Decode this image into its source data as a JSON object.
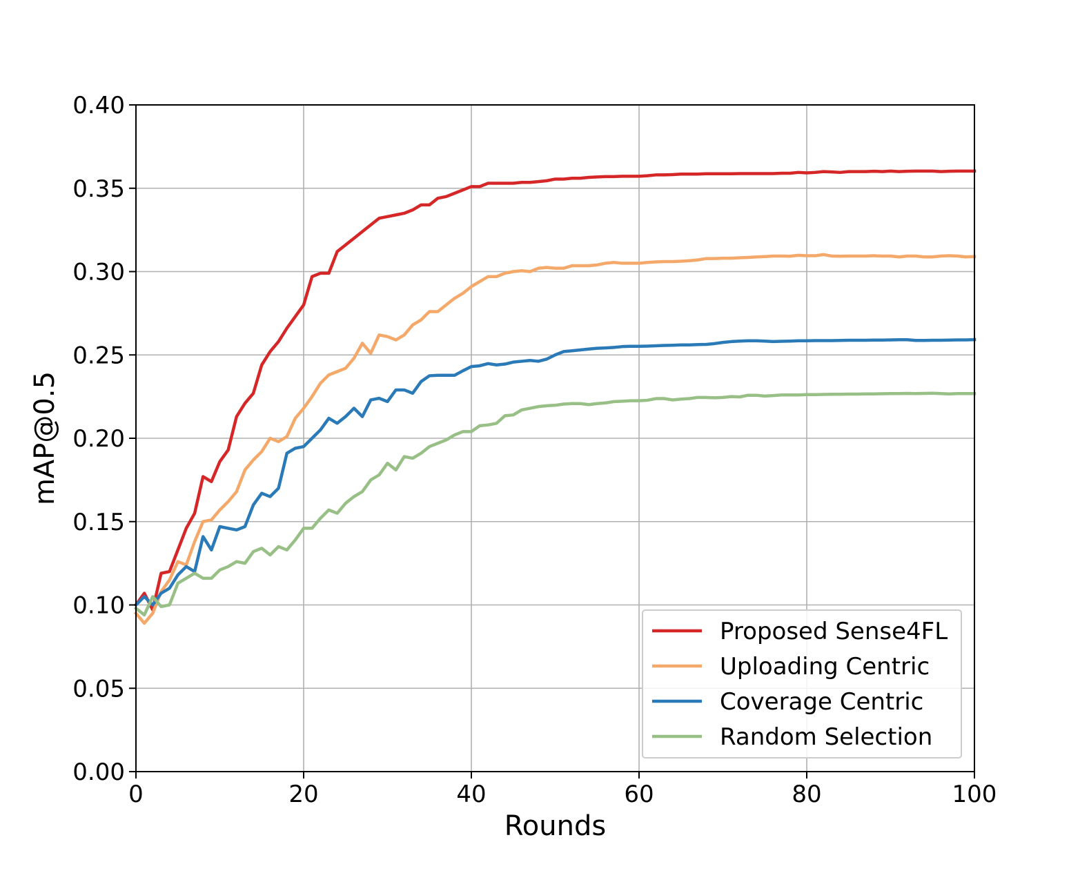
{
  "chart_data": {
    "type": "line",
    "xlabel": "Rounds",
    "ylabel": "mAP@0.5",
    "xlim": [
      0,
      100
    ],
    "ylim": [
      0,
      0.4
    ],
    "xticks": [
      "0",
      "20",
      "40",
      "60",
      "80",
      "100"
    ],
    "yticks": [
      "0.00",
      "0.05",
      "0.10",
      "0.15",
      "0.20",
      "0.25",
      "0.30",
      "0.35",
      "0.40"
    ],
    "grid": true,
    "legend_position": "lower-right",
    "x": [
      0,
      1,
      2,
      3,
      4,
      5,
      6,
      7,
      8,
      9,
      10,
      11,
      12,
      13,
      14,
      15,
      16,
      17,
      18,
      19,
      20,
      21,
      22,
      23,
      24,
      25,
      26,
      27,
      28,
      29,
      30,
      31,
      32,
      33,
      34,
      35,
      36,
      37,
      38,
      39,
      40,
      41,
      42,
      43,
      44,
      45,
      46,
      47,
      48,
      49,
      50,
      51,
      52,
      53,
      54,
      55,
      56,
      57,
      58,
      59,
      60,
      61,
      62,
      63,
      64,
      65,
      66,
      67,
      68,
      69,
      70,
      71,
      72,
      73,
      74,
      75,
      76,
      77,
      78,
      79,
      80,
      81,
      82,
      83,
      84,
      85,
      86,
      87,
      88,
      89,
      90,
      91,
      92,
      93,
      94,
      95,
      96,
      97,
      98,
      99,
      100
    ],
    "series": [
      {
        "name": "Proposed Sense4FL",
        "color": "#d62728",
        "values": [
          0.1,
          0.107,
          0.097,
          0.119,
          0.12,
          0.133,
          0.146,
          0.155,
          0.177,
          0.174,
          0.186,
          0.193,
          0.213,
          0.221,
          0.227,
          0.244,
          0.252,
          0.258,
          0.266,
          0.273,
          0.28,
          0.297,
          0.299,
          0.299,
          0.312,
          0.316,
          0.32,
          0.324,
          0.328,
          0.332,
          0.333,
          0.334,
          0.335,
          0.337,
          0.34,
          0.34,
          0.344,
          0.345,
          0.347,
          0.349,
          0.351,
          0.351,
          0.353,
          0.353,
          0.353,
          0.353,
          0.3535,
          0.3535,
          0.354,
          0.3545,
          0.3555,
          0.3555,
          0.356,
          0.356,
          0.3565,
          0.3568,
          0.357,
          0.357,
          0.3572,
          0.3572,
          0.3572,
          0.3575,
          0.358,
          0.358,
          0.3582,
          0.3585,
          0.3585,
          0.3585,
          0.3587,
          0.3587,
          0.3587,
          0.3587,
          0.3588,
          0.3588,
          0.3588,
          0.3588,
          0.3588,
          0.359,
          0.359,
          0.3595,
          0.3592,
          0.3595,
          0.36,
          0.3598,
          0.3595,
          0.36,
          0.36,
          0.36,
          0.3602,
          0.36,
          0.3603,
          0.36,
          0.3602,
          0.3603,
          0.3603,
          0.3603,
          0.36,
          0.3602,
          0.3603,
          0.3603,
          0.3603
        ]
      },
      {
        "name": "Uploading Centric",
        "color": "#f4a96a",
        "values": [
          0.095,
          0.089,
          0.095,
          0.108,
          0.115,
          0.126,
          0.124,
          0.138,
          0.15,
          0.151,
          0.157,
          0.162,
          0.168,
          0.181,
          0.187,
          0.192,
          0.2,
          0.198,
          0.201,
          0.212,
          0.218,
          0.225,
          0.233,
          0.238,
          0.24,
          0.242,
          0.248,
          0.257,
          0.251,
          0.262,
          0.261,
          0.259,
          0.262,
          0.268,
          0.271,
          0.276,
          0.276,
          0.28,
          0.284,
          0.287,
          0.291,
          0.294,
          0.297,
          0.297,
          0.299,
          0.3,
          0.3005,
          0.3,
          0.302,
          0.3025,
          0.302,
          0.302,
          0.3035,
          0.3035,
          0.3035,
          0.304,
          0.305,
          0.3055,
          0.305,
          0.305,
          0.305,
          0.3055,
          0.3058,
          0.306,
          0.306,
          0.3062,
          0.3065,
          0.307,
          0.3078,
          0.3078,
          0.308,
          0.308,
          0.3083,
          0.3085,
          0.3088,
          0.309,
          0.3093,
          0.3093,
          0.3092,
          0.3098,
          0.3095,
          0.3095,
          0.3102,
          0.3093,
          0.3092,
          0.3093,
          0.3093,
          0.3093,
          0.3095,
          0.3093,
          0.3093,
          0.3088,
          0.3093,
          0.3093,
          0.3088,
          0.3088,
          0.3093,
          0.3095,
          0.3093,
          0.3088,
          0.309
        ]
      },
      {
        "name": "Coverage Centric",
        "color": "#2b7ab8",
        "values": [
          0.1,
          0.105,
          0.1,
          0.107,
          0.11,
          0.118,
          0.123,
          0.12,
          0.141,
          0.133,
          0.147,
          0.146,
          0.145,
          0.147,
          0.16,
          0.167,
          0.165,
          0.17,
          0.191,
          0.194,
          0.195,
          0.2,
          0.205,
          0.212,
          0.209,
          0.213,
          0.218,
          0.213,
          0.223,
          0.224,
          0.222,
          0.229,
          0.229,
          0.227,
          0.234,
          0.2375,
          0.2378,
          0.2378,
          0.2378,
          0.2405,
          0.243,
          0.2435,
          0.2448,
          0.244,
          0.2445,
          0.2457,
          0.2462,
          0.2467,
          0.2462,
          0.2475,
          0.25,
          0.252,
          0.2525,
          0.253,
          0.2535,
          0.254,
          0.2542,
          0.2545,
          0.255,
          0.2552,
          0.2552,
          0.2553,
          0.2555,
          0.2557,
          0.2558,
          0.256,
          0.256,
          0.2562,
          0.2563,
          0.2568,
          0.2575,
          0.258,
          0.2583,
          0.2585,
          0.2585,
          0.2583,
          0.258,
          0.2582,
          0.2583,
          0.2585,
          0.2585,
          0.2586,
          0.2586,
          0.2586,
          0.2587,
          0.2588,
          0.2588,
          0.2588,
          0.2589,
          0.2589,
          0.259,
          0.2591,
          0.2591,
          0.2587,
          0.2587,
          0.2588,
          0.2588,
          0.2589,
          0.259,
          0.259,
          0.2592
        ]
      },
      {
        "name": "Random Selection",
        "color": "#98bf85",
        "values": [
          0.098,
          0.094,
          0.105,
          0.099,
          0.1,
          0.113,
          0.116,
          0.119,
          0.116,
          0.116,
          0.121,
          0.123,
          0.126,
          0.125,
          0.132,
          0.134,
          0.13,
          0.135,
          0.133,
          0.139,
          0.146,
          0.146,
          0.152,
          0.157,
          0.155,
          0.161,
          0.165,
          0.168,
          0.175,
          0.178,
          0.185,
          0.181,
          0.189,
          0.188,
          0.191,
          0.195,
          0.197,
          0.199,
          0.202,
          0.204,
          0.204,
          0.2075,
          0.208,
          0.209,
          0.2135,
          0.214,
          0.217,
          0.218,
          0.219,
          0.2195,
          0.2198,
          0.2205,
          0.2208,
          0.2208,
          0.2202,
          0.2208,
          0.2212,
          0.222,
          0.2222,
          0.2225,
          0.2225,
          0.2228,
          0.2238,
          0.2238,
          0.223,
          0.2235,
          0.2238,
          0.2245,
          0.2245,
          0.2243,
          0.2245,
          0.225,
          0.2248,
          0.2258,
          0.2258,
          0.2253,
          0.2256,
          0.226,
          0.226,
          0.226,
          0.2262,
          0.2262,
          0.2263,
          0.2264,
          0.2264,
          0.2265,
          0.2265,
          0.2266,
          0.2266,
          0.2267,
          0.2268,
          0.2268,
          0.2269,
          0.2268,
          0.2269,
          0.227,
          0.2268,
          0.2266,
          0.2268,
          0.2268,
          0.2268
        ]
      }
    ]
  }
}
